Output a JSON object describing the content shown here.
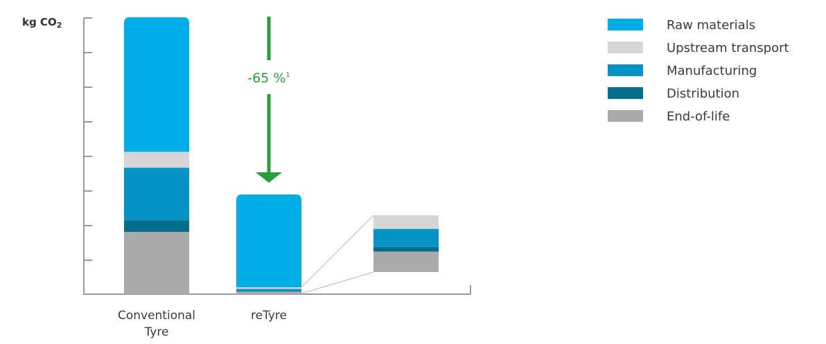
{
  "chart_data": {
    "type": "bar",
    "stacked": true,
    "ylabel": "kg CO",
    "ylabel_subscript": "2",
    "y_ticks_labeled": false,
    "ylim": [
      0,
      100
    ],
    "categories": [
      "Conventional Tyre",
      "reTyre"
    ],
    "category_lines": [
      [
        "Conventional",
        "Tyre"
      ],
      [
        "reTyre"
      ]
    ],
    "series": [
      {
        "name": "End-of-life",
        "color": "#aaaaaa",
        "values": [
          22.5,
          0.9
        ]
      },
      {
        "name": "Distribution",
        "color": "#036d8c",
        "values": [
          4.2,
          0.2
        ]
      },
      {
        "name": "Manufacturing",
        "color": "#0493c4",
        "values": [
          19.0,
          0.8
        ]
      },
      {
        "name": "Upstream transport",
        "color": "#d6d6d6",
        "values": [
          5.7,
          0.6
        ]
      },
      {
        "name": "Raw materials",
        "color": "#00ade6",
        "values": [
          48.6,
          33.5
        ]
      }
    ],
    "legend_order": [
      "Raw materials",
      "Upstream transport",
      "Manufacturing",
      "Distribution",
      "End-of-life"
    ],
    "legend_position": "top-right",
    "annotation": {
      "text": "-65 %",
      "superscript": "1",
      "color": "#2a9d3a"
    },
    "inset": {
      "description_of": "reTyre",
      "series_order": [
        "End-of-life",
        "Distribution",
        "Manufacturing",
        "Upstream transport"
      ]
    }
  }
}
